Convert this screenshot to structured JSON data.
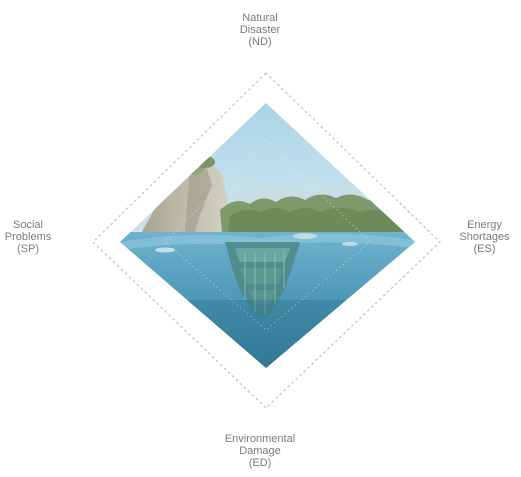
{
  "labels": {
    "top": {
      "line1": "Natural",
      "line2": "Disaster",
      "line3": "(ND)"
    },
    "right": {
      "line1": "Energy",
      "line2": "Shortages",
      "line3": "(ES)"
    },
    "left": {
      "line1": "Social",
      "line2": "Problems",
      "line3": "(SP)"
    },
    "bottom": {
      "line1": "Environmental",
      "line2": "Damage",
      "line3": "(ED)"
    }
  },
  "colors": {
    "label_text": "#7a7a7a",
    "dotted_outline": "#c6c6c6",
    "sky_light": "#d7eaf2",
    "sky_blue": "#9cc9df",
    "water_deep": "#3a7f9e",
    "water_mid": "#5aa2c0",
    "foliage": "#7f9a6a",
    "cliff": "#b9b6a6"
  },
  "icons": {
    "center_image": "floating-island-illustration"
  }
}
